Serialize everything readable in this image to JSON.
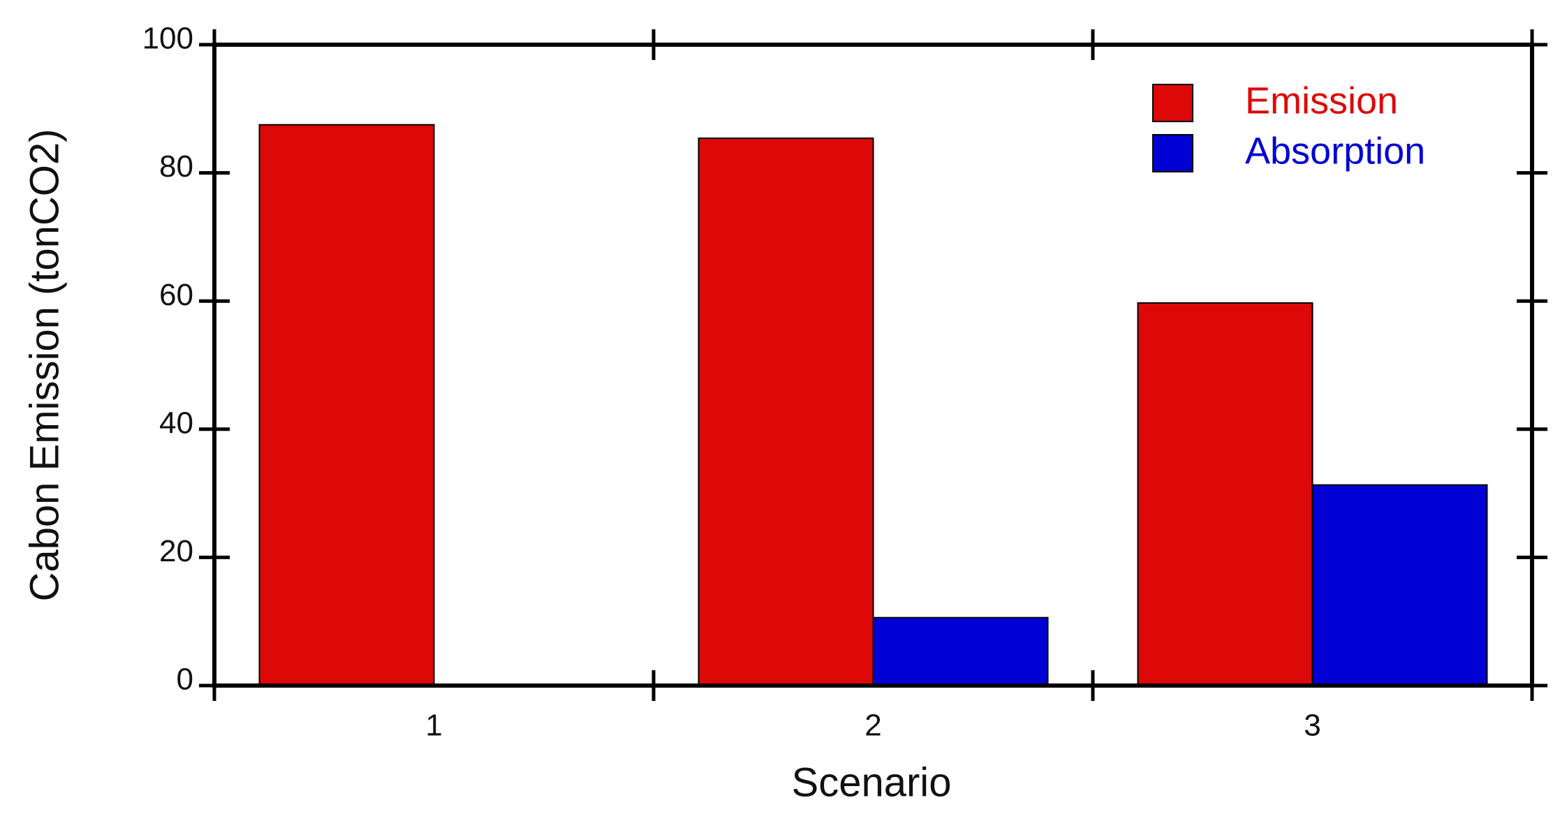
{
  "chart_data": {
    "type": "bar",
    "x_label": "Scenario",
    "y_label": "Cabon Emission (tonCO2)",
    "categories": [
      "1",
      "2",
      "3"
    ],
    "series": [
      {
        "name": "Emission",
        "color": "#dd0808",
        "values": [
          87.5,
          85.4,
          59.7
        ]
      },
      {
        "name": "Absorption",
        "color": "#0000d4",
        "values": [
          0,
          10.6,
          31.3
        ]
      }
    ],
    "ylim": [
      0,
      100
    ],
    "yticks": [
      0,
      20,
      40,
      60,
      80,
      100
    ],
    "legend": "upper right"
  }
}
